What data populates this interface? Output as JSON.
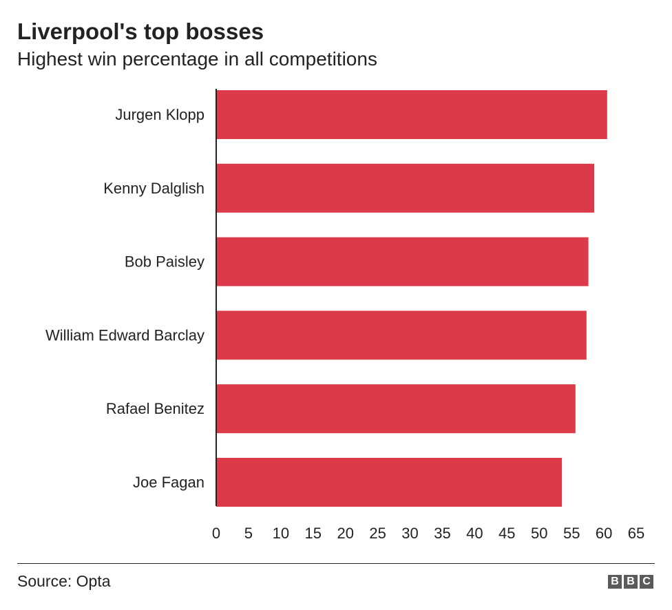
{
  "title": "Liverpool's top bosses",
  "subtitle": "Highest win percentage in all competitions",
  "source": "Source: Opta",
  "logo_letters": [
    "B",
    "B",
    "C"
  ],
  "colors": {
    "bar": "#db3b49",
    "axis": "#222222",
    "text": "#222222",
    "logo": "#5a5a5a"
  },
  "chart_data": {
    "type": "bar",
    "orientation": "horizontal",
    "categories": [
      "Jurgen Klopp",
      "Kenny Dalglish",
      "Bob Paisley",
      "William Edward Barclay",
      "Rafael Benitez",
      "Joe Fagan"
    ],
    "values": [
      60.5,
      58.5,
      57.6,
      57.3,
      55.6,
      53.5
    ],
    "xlim": [
      0,
      65
    ],
    "xticks": [
      0,
      5,
      10,
      15,
      20,
      25,
      30,
      35,
      40,
      45,
      50,
      55,
      60,
      65
    ],
    "grid": false
  }
}
